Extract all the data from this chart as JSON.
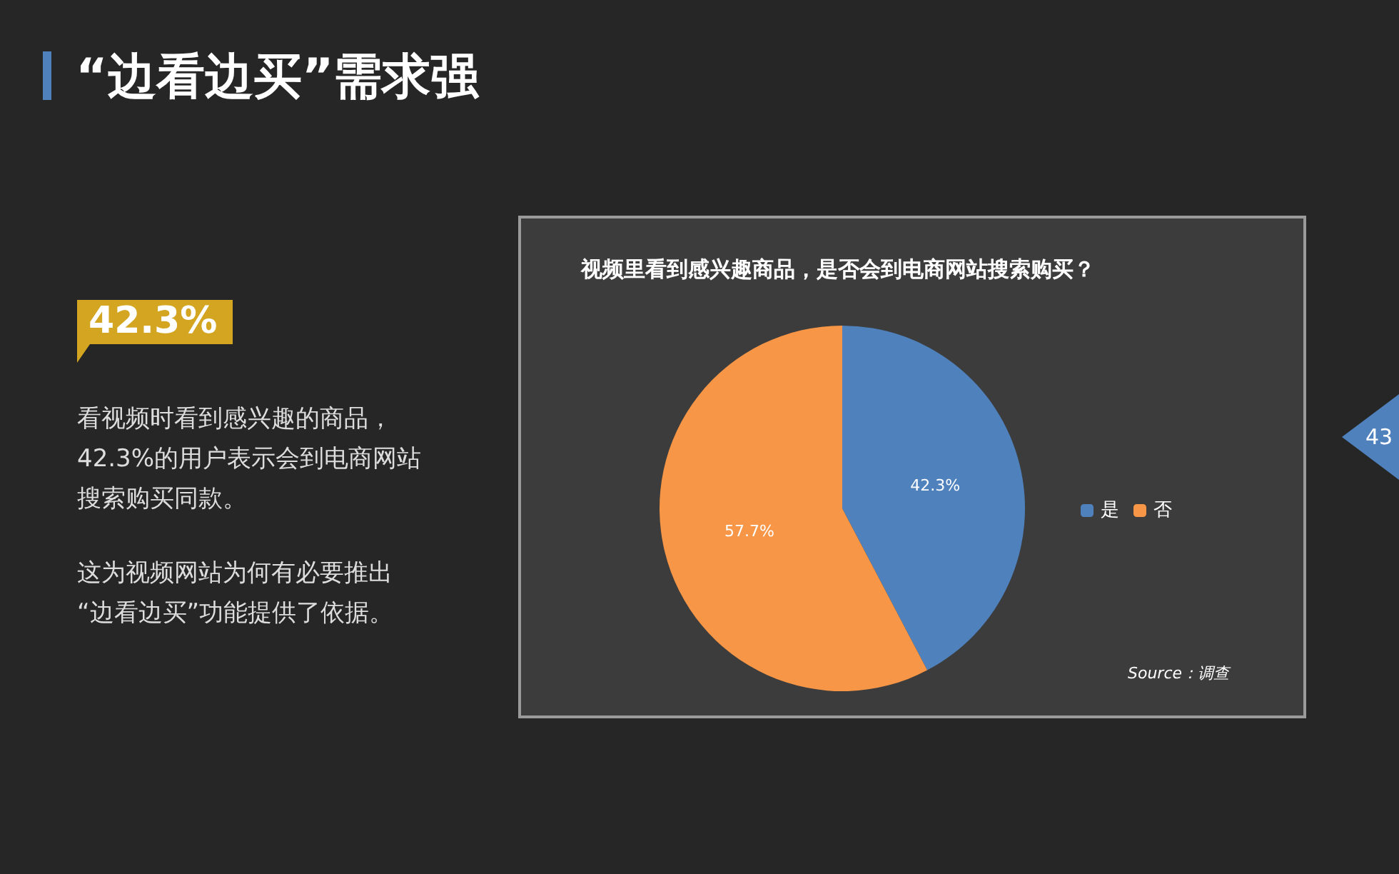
{
  "chart_data": {
    "type": "pie",
    "title": "“边看边买”需求强",
    "subtitle": "视频里看到感兴趣商品，是否会到电商网站搜索购买？",
    "categories": [
      "是",
      "否"
    ],
    "values": [
      42.3,
      57.7
    ],
    "colors": [
      "#4f81bd",
      "#f79646"
    ],
    "value_labels": [
      "42.3%",
      "57.7%"
    ],
    "legend": "right",
    "annotations": [
      "42.3%",
      "看视频时看到感兴趣的商品，",
      "42.3%的用户表示会到电商网站",
      "搜索购买同款。",
      "这为视频网站为何有必要推出",
      "“边看边买”功能提供了依据。",
      "Source：调查",
      "43"
    ]
  }
}
